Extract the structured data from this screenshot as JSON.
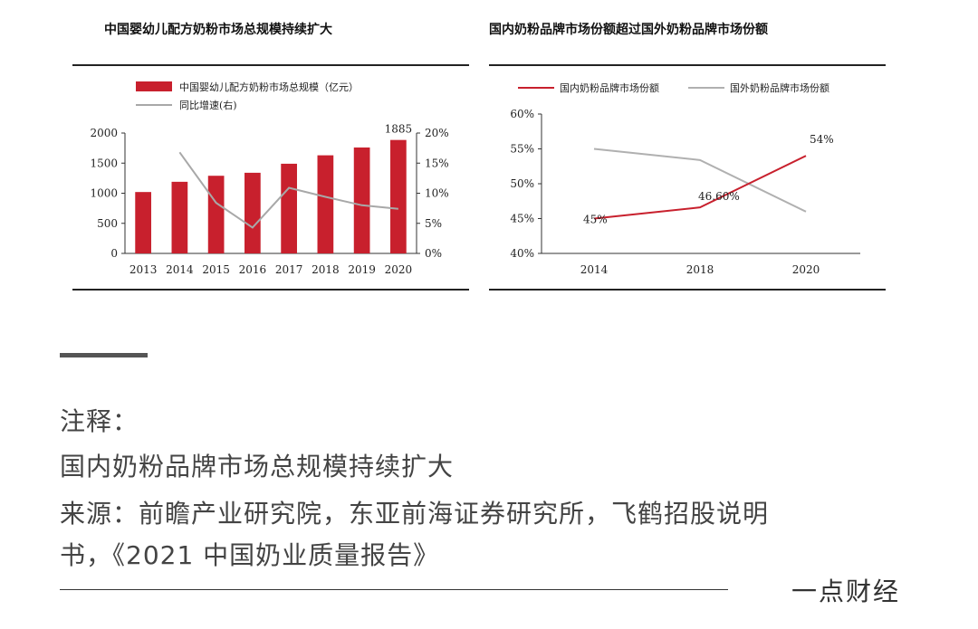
{
  "chart_data": [
    {
      "type": "bar",
      "title": "中国婴幼儿配方奶粉市场总规模持续扩大",
      "categories": [
        "2013",
        "2014",
        "2015",
        "2016",
        "2017",
        "2018",
        "2019",
        "2020"
      ],
      "series": [
        {
          "name": "中国婴幼儿配方奶粉市场总规模（亿元）",
          "type": "bar",
          "axis": "left",
          "values": [
            1020,
            1190,
            1290,
            1340,
            1490,
            1630,
            1760,
            1885
          ],
          "color": "#c8202d"
        },
        {
          "name": "同比增速(右)",
          "type": "line",
          "axis": "right",
          "values": [
            null,
            16.8,
            8.4,
            4.3,
            10.9,
            9.4,
            8.0,
            7.4
          ],
          "color": "#a8a8a8"
        }
      ],
      "data_labels": {
        "2020": "1885"
      },
      "ylim": [
        0,
        2000
      ],
      "yticks": [
        "0",
        "500",
        "1000",
        "1500",
        "2000"
      ],
      "y2lim": [
        0,
        20
      ],
      "y2ticks": [
        "0%",
        "5%",
        "10%",
        "15%",
        "20%"
      ],
      "legend_placement": "top-left",
      "grid": false
    },
    {
      "type": "line",
      "title": "国内奶粉品牌市场份额超过国外奶粉品牌市场份额",
      "categories": [
        "2014",
        "2018",
        "2020"
      ],
      "series": [
        {
          "name": "国内奶粉品牌市场份额",
          "values": [
            45,
            46.6,
            54
          ],
          "color": "#c8202d"
        },
        {
          "name": "国外奶粉品牌市场份额",
          "values": [
            55,
            53.4,
            46
          ],
          "color": "#b0b0b0"
        }
      ],
      "data_labels": [
        "45%",
        "46.60%",
        "54%"
      ],
      "ylim": [
        40,
        60
      ],
      "yticks": [
        "40%",
        "45%",
        "50%",
        "55%",
        "60%"
      ],
      "legend_placement": "top",
      "grid": false
    }
  ],
  "notes": {
    "heading": "注释：",
    "line1": "国内奶粉品牌市场总规模持续扩大",
    "line2": "来源：前瞻产业研究院，东亚前海证券研究所，飞鹤招股说明",
    "line3": "书，《2021 中国奶业质量报告》"
  },
  "brand": "一点财经",
  "colors": {
    "accent_red": "#c8202d",
    "gray_line": "#a8a8a8"
  }
}
